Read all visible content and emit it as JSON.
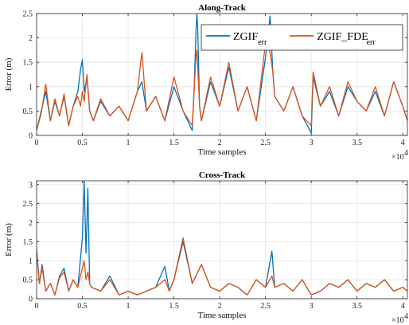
{
  "chart_data": [
    {
      "type": "line",
      "title": "Along-Track",
      "xlabel": "Time samples",
      "ylabel": "Error (m)",
      "x_exponent_label": "×10",
      "x_exponent_power": "4",
      "xlim": [
        0,
        4.05
      ],
      "ylim": [
        0,
        2.5
      ],
      "xticks": [
        0,
        0.5,
        1,
        1.5,
        2,
        2.5,
        3,
        3.5,
        4
      ],
      "xtick_labels": [
        "0",
        "0.5",
        "1",
        "1.5",
        "2",
        "2.5",
        "3",
        "3.5",
        "4"
      ],
      "yticks": [
        0,
        0.5,
        1,
        1.5,
        2,
        2.5
      ],
      "ytick_labels": [
        "0",
        "0.5",
        "1",
        "1.5",
        "2",
        "2.5"
      ],
      "grid": true,
      "legend_position": "top-right",
      "legend": [
        {
          "main": "ZGIF",
          "sub": "err",
          "color": "#0072BD"
        },
        {
          "main": "ZGIF_FDE",
          "sub": "err",
          "color": "#D95319"
        }
      ],
      "series": [
        {
          "name": "ZGIF_err",
          "color": "#0072BD",
          "x": [
            0,
            0.05,
            0.1,
            0.15,
            0.2,
            0.25,
            0.3,
            0.35,
            0.4,
            0.45,
            0.48,
            0.5,
            0.52,
            0.55,
            0.58,
            0.62,
            0.7,
            0.8,
            0.9,
            1.0,
            1.1,
            1.15,
            1.2,
            1.3,
            1.4,
            1.5,
            1.6,
            1.7,
            1.72,
            1.74,
            1.75,
            1.76,
            1.78,
            1.8,
            1.9,
            2.0,
            2.1,
            2.2,
            2.3,
            2.4,
            2.5,
            2.55,
            2.58,
            2.6,
            2.7,
            2.8,
            2.9,
            3.0,
            3.02,
            3.1,
            3.2,
            3.3,
            3.4,
            3.5,
            3.6,
            3.7,
            3.8,
            3.9,
            4.0,
            4.05
          ],
          "y": [
            0.1,
            0.5,
            0.9,
            0.3,
            0.7,
            0.4,
            0.8,
            0.2,
            0.6,
            0.9,
            1.35,
            1.55,
            0.9,
            1.2,
            0.5,
            0.3,
            0.7,
            0.4,
            0.6,
            0.3,
            0.9,
            1.1,
            0.5,
            0.8,
            0.3,
            1.0,
            0.5,
            0.1,
            0.9,
            2.1,
            2.5,
            2.2,
            0.6,
            0.3,
            1.1,
            0.6,
            1.4,
            0.5,
            1.0,
            0.3,
            1.6,
            2.45,
            1.3,
            0.8,
            0.5,
            1.0,
            0.4,
            0.05,
            1.2,
            0.6,
            0.9,
            0.4,
            1.0,
            0.7,
            0.5,
            0.9,
            0.4,
            1.1,
            0.6,
            0.3
          ]
        },
        {
          "name": "ZGIF_FDE_err",
          "color": "#D95319",
          "x": [
            0,
            0.05,
            0.1,
            0.15,
            0.2,
            0.25,
            0.3,
            0.35,
            0.4,
            0.45,
            0.48,
            0.5,
            0.52,
            0.55,
            0.58,
            0.62,
            0.7,
            0.8,
            0.9,
            1.0,
            1.1,
            1.15,
            1.2,
            1.3,
            1.4,
            1.5,
            1.6,
            1.7,
            1.72,
            1.74,
            1.75,
            1.76,
            1.78,
            1.8,
            1.9,
            2.0,
            2.1,
            2.2,
            2.3,
            2.4,
            2.5,
            2.55,
            2.58,
            2.6,
            2.7,
            2.8,
            2.9,
            3.0,
            3.02,
            3.1,
            3.2,
            3.3,
            3.4,
            3.5,
            3.6,
            3.7,
            3.8,
            3.9,
            4.0,
            4.05
          ],
          "y": [
            0.1,
            0.45,
            1.05,
            0.3,
            0.75,
            0.4,
            0.85,
            0.2,
            0.6,
            0.8,
            0.6,
            0.9,
            0.7,
            1.25,
            0.5,
            0.3,
            0.75,
            0.4,
            0.6,
            0.3,
            0.9,
            1.7,
            0.5,
            0.8,
            0.3,
            1.2,
            0.5,
            0.2,
            0.9,
            1.6,
            1.75,
            1.4,
            0.6,
            0.3,
            1.2,
            0.6,
            1.5,
            0.5,
            1.0,
            0.3,
            1.9,
            1.7,
            1.3,
            0.8,
            0.5,
            1.0,
            0.4,
            0.2,
            1.3,
            0.6,
            1.0,
            0.4,
            1.1,
            0.7,
            0.5,
            1.0,
            0.4,
            1.1,
            0.6,
            0.3
          ]
        }
      ]
    },
    {
      "type": "line",
      "title": "Cross-Track",
      "xlabel": "Time samples",
      "ylabel": "Error (m)",
      "x_exponent_label": "×10",
      "x_exponent_power": "4",
      "xlim": [
        0,
        4.05
      ],
      "ylim": [
        0,
        3.1
      ],
      "xticks": [
        0,
        0.5,
        1,
        1.5,
        2,
        2.5,
        3,
        3.5,
        4
      ],
      "xtick_labels": [
        "0",
        "0.5",
        "1",
        "1.5",
        "2",
        "2.5",
        "3",
        "3.5",
        "4"
      ],
      "yticks": [
        0,
        0.5,
        1,
        1.5,
        2,
        2.5,
        3
      ],
      "ytick_labels": [
        "0",
        "0.5",
        "1",
        "1.5",
        "2",
        "2.5",
        "3"
      ],
      "grid": true,
      "series": [
        {
          "name": "ZGIF_err",
          "color": "#0072BD",
          "x": [
            0,
            0.03,
            0.06,
            0.1,
            0.15,
            0.2,
            0.25,
            0.3,
            0.35,
            0.4,
            0.45,
            0.5,
            0.52,
            0.54,
            0.56,
            0.58,
            0.6,
            0.7,
            0.8,
            0.9,
            1.0,
            1.1,
            1.2,
            1.3,
            1.4,
            1.45,
            1.5,
            1.6,
            1.7,
            1.8,
            1.9,
            2.0,
            2.1,
            2.2,
            2.3,
            2.4,
            2.5,
            2.57,
            2.6,
            2.7,
            2.8,
            2.9,
            3.0,
            3.1,
            3.2,
            3.3,
            3.4,
            3.5,
            3.6,
            3.7,
            3.8,
            3.9,
            4.0,
            4.05
          ],
          "y": [
            1.3,
            0.4,
            0.9,
            0.2,
            0.4,
            0.1,
            0.6,
            0.8,
            0.2,
            0.5,
            0.3,
            1.6,
            3.1,
            1.2,
            2.9,
            0.4,
            0.3,
            0.2,
            0.6,
            0.1,
            0.2,
            0.1,
            0.2,
            0.3,
            0.85,
            0.2,
            0.5,
            1.5,
            0.4,
            0.9,
            0.3,
            0.2,
            0.4,
            0.3,
            0.1,
            0.5,
            0.3,
            1.25,
            0.3,
            0.4,
            0.2,
            0.5,
            0.1,
            0.2,
            0.4,
            0.3,
            0.5,
            0.2,
            0.4,
            0.3,
            0.5,
            0.2,
            0.3,
            0.2
          ]
        },
        {
          "name": "ZGIF_FDE_err",
          "color": "#D95319",
          "x": [
            0,
            0.03,
            0.06,
            0.1,
            0.15,
            0.2,
            0.25,
            0.3,
            0.35,
            0.4,
            0.45,
            0.5,
            0.52,
            0.54,
            0.56,
            0.58,
            0.6,
            0.7,
            0.8,
            0.9,
            1.0,
            1.1,
            1.2,
            1.3,
            1.4,
            1.45,
            1.5,
            1.6,
            1.7,
            1.8,
            1.9,
            2.0,
            2.1,
            2.2,
            2.3,
            2.4,
            2.5,
            2.57,
            2.6,
            2.7,
            2.8,
            2.9,
            3.0,
            3.1,
            3.2,
            3.3,
            3.4,
            3.5,
            3.6,
            3.7,
            3.8,
            3.9,
            4.0,
            4.05
          ],
          "y": [
            1.25,
            0.4,
            0.8,
            0.2,
            0.4,
            0.1,
            0.55,
            0.7,
            0.2,
            0.5,
            0.3,
            0.8,
            1.0,
            0.5,
            0.7,
            0.4,
            0.3,
            0.2,
            0.5,
            0.1,
            0.2,
            0.1,
            0.2,
            0.3,
            0.5,
            0.2,
            0.5,
            1.6,
            0.4,
            0.9,
            0.3,
            0.2,
            0.4,
            0.3,
            0.1,
            0.5,
            0.3,
            0.6,
            0.3,
            0.4,
            0.2,
            0.5,
            0.1,
            0.2,
            0.4,
            0.3,
            0.5,
            0.2,
            0.4,
            0.3,
            0.5,
            0.2,
            0.3,
            0.2
          ]
        }
      ]
    }
  ]
}
